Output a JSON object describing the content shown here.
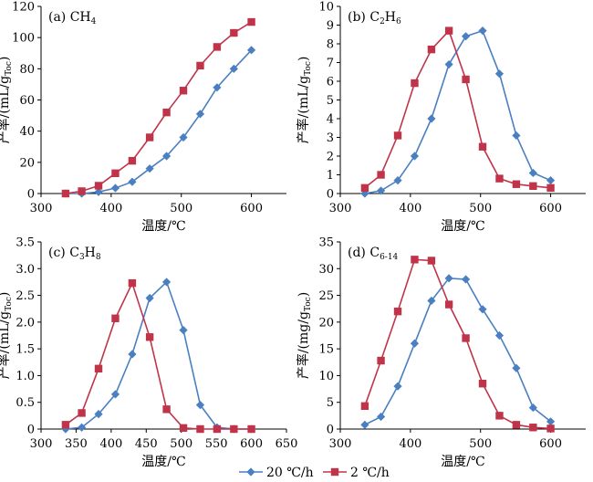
{
  "chart_data": [
    {
      "type": "line",
      "panel_label": "(a) CH",
      "panel_sub": "4",
      "xlabel": "温度/℃",
      "ylabel_main": "产率/(mL/g",
      "ylabel_sub": "Toc",
      "ylabel_end": ")",
      "xlim": [
        300,
        650
      ],
      "ylim": [
        0,
        120
      ],
      "xticks": [
        300,
        400,
        500,
        600
      ],
      "yticks": [
        0,
        20,
        40,
        60,
        80,
        100,
        120
      ],
      "series": [
        {
          "name": "20 ℃/h",
          "x": [
            335,
            358,
            382,
            406,
            430,
            455,
            479,
            503,
            527,
            551,
            575,
            600
          ],
          "y": [
            0,
            0,
            1,
            3.5,
            7.5,
            16,
            24,
            36,
            51,
            68,
            80,
            92
          ]
        },
        {
          "name": "2 ℃/h",
          "x": [
            335,
            358,
            382,
            406,
            430,
            455,
            479,
            503,
            527,
            551,
            575,
            600
          ],
          "y": [
            0,
            1.5,
            5,
            13,
            21,
            36,
            52,
            66,
            82,
            94,
            103,
            110
          ]
        }
      ]
    },
    {
      "type": "line",
      "panel_label": "(b) C",
      "panel_sub": "2",
      "panel_label2": "H",
      "panel_sub2": "6",
      "xlabel": "温度/℃",
      "ylabel_main": "产率/(mL/g",
      "ylabel_sub": "Toc",
      "ylabel_end": ")",
      "xlim": [
        300,
        650
      ],
      "ylim": [
        0,
        10
      ],
      "xticks": [
        300,
        400,
        500,
        600
      ],
      "yticks": [
        0,
        1,
        2,
        3,
        4,
        5,
        6,
        7,
        8,
        9,
        10
      ],
      "series": [
        {
          "name": "20 ℃/h",
          "x": [
            335,
            358,
            382,
            406,
            430,
            455,
            479,
            503,
            527,
            551,
            575,
            600
          ],
          "y": [
            0,
            0.15,
            0.7,
            2,
            4,
            6.9,
            8.4,
            8.7,
            6.4,
            3.1,
            1.1,
            0.7
          ]
        },
        {
          "name": "2 ℃/h",
          "x": [
            335,
            358,
            382,
            406,
            430,
            455,
            479,
            503,
            527,
            551,
            575,
            600
          ],
          "y": [
            0.3,
            1,
            3.1,
            5.9,
            7.7,
            8.7,
            6.1,
            2.5,
            0.8,
            0.5,
            0.4,
            0.3
          ]
        }
      ]
    },
    {
      "type": "line",
      "panel_label": "(c) C",
      "panel_sub": "3",
      "panel_label2": "H",
      "panel_sub2": "8",
      "xlabel": "温度/℃",
      "ylabel_main": "产率/(mL/g",
      "ylabel_sub": "Toc",
      "ylabel_end": ")",
      "xlim": [
        300,
        650
      ],
      "ylim": [
        0,
        3.5
      ],
      "xticks": [
        300,
        350,
        400,
        450,
        500,
        550,
        600,
        650
      ],
      "yticks": [
        0,
        0.5,
        1.0,
        1.5,
        2.0,
        2.5,
        3.0,
        3.5
      ],
      "ytick_labels": [
        "0",
        "0.5",
        "1.0",
        "1.5",
        "2.0",
        "2.5",
        "3.0",
        "3.5"
      ],
      "series": [
        {
          "name": "20 ℃/h",
          "x": [
            335,
            358,
            382,
            406,
            430,
            455,
            479,
            503,
            527,
            551,
            575,
            600
          ],
          "y": [
            0,
            0.03,
            0.28,
            0.65,
            1.4,
            2.45,
            2.75,
            1.85,
            0.45,
            0.03,
            0,
            0
          ]
        },
        {
          "name": "2 ℃/h",
          "x": [
            335,
            358,
            382,
            406,
            430,
            455,
            479,
            503,
            527,
            551,
            575,
            600
          ],
          "y": [
            0.08,
            0.3,
            1.13,
            2.07,
            2.73,
            1.72,
            0.37,
            0.02,
            0,
            0,
            0,
            0
          ]
        }
      ]
    },
    {
      "type": "line",
      "panel_label": "(d) C",
      "panel_sub": "6-14",
      "xlabel": "温度/℃",
      "ylabel_main": "产率/(mg/g",
      "ylabel_sub": "Toc",
      "ylabel_end": ")",
      "xlim": [
        300,
        650
      ],
      "ylim": [
        0,
        35
      ],
      "xticks": [
        300,
        400,
        500,
        600
      ],
      "yticks": [
        0,
        5,
        10,
        15,
        20,
        25,
        30,
        35
      ],
      "series": [
        {
          "name": "20 ℃/h",
          "x": [
            335,
            358,
            382,
            406,
            430,
            455,
            479,
            503,
            527,
            551,
            575,
            600
          ],
          "y": [
            0.8,
            2.3,
            8,
            16,
            24,
            28.2,
            28,
            22.4,
            17.5,
            11.4,
            4,
            1.4
          ]
        },
        {
          "name": "2 ℃/h",
          "x": [
            335,
            358,
            382,
            406,
            430,
            455,
            479,
            503,
            527,
            551,
            575,
            600
          ],
          "y": [
            4.3,
            12.8,
            22,
            31.7,
            31.5,
            23.3,
            17,
            8.5,
            2.5,
            0.8,
            0.3,
            0.1
          ]
        }
      ]
    }
  ],
  "legend": {
    "placement": "bottom-center",
    "items": [
      {
        "label": "20 ℃/h",
        "color": "#4a7fc1",
        "marker": "diamond"
      },
      {
        "label": "2 ℃/h",
        "color": "#c0344a",
        "marker": "square"
      }
    ]
  },
  "colors": {
    "series_a": "#4a7fc1",
    "series_b": "#c0344a"
  }
}
